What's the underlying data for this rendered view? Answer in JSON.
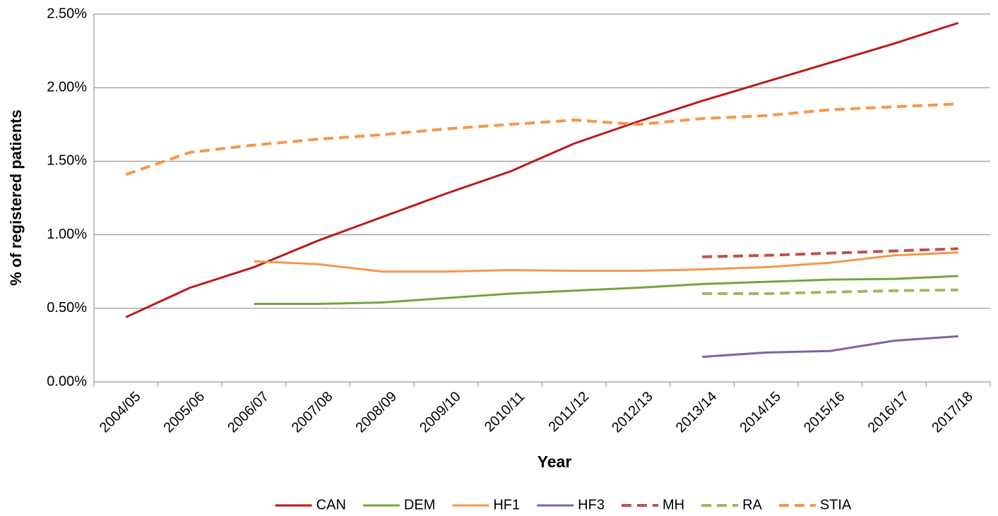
{
  "chart_data": {
    "type": "line",
    "x_label": "Year",
    "y_label": "% of registered patients",
    "categories": [
      "2004/05",
      "2005/06",
      "2006/07",
      "2007/08",
      "2008/09",
      "2009/10",
      "2010/11",
      "2011/12",
      "2012/13",
      "2013/14",
      "2014/15",
      "2015/16",
      "2016/17",
      "2017/18"
    ],
    "series": [
      {
        "name": "CAN",
        "color": "#c0161b",
        "style": "solid",
        "values": [
          0.44,
          0.64,
          0.78,
          0.96,
          1.12,
          1.28,
          1.43,
          1.62,
          1.77,
          1.91,
          2.04,
          2.17,
          2.3,
          2.44
        ]
      },
      {
        "name": "DEM",
        "color": "#77a33f",
        "style": "solid",
        "values": [
          null,
          null,
          0.53,
          0.53,
          0.54,
          0.57,
          0.6,
          0.62,
          0.64,
          0.665,
          0.68,
          0.695,
          0.7,
          0.72
        ]
      },
      {
        "name": "HF1",
        "color": "#f79646",
        "style": "solid",
        "values": [
          null,
          null,
          0.82,
          0.8,
          0.75,
          0.75,
          0.76,
          0.755,
          0.755,
          0.765,
          0.78,
          0.81,
          0.86,
          0.88
        ]
      },
      {
        "name": "HF3",
        "color": "#8064a2",
        "style": "solid",
        "values": [
          null,
          null,
          null,
          null,
          null,
          null,
          null,
          null,
          null,
          0.17,
          0.2,
          0.21,
          0.28,
          0.31
        ]
      },
      {
        "name": "MH",
        "color": "#c0504d",
        "style": "dashed",
        "values": [
          null,
          null,
          null,
          null,
          null,
          null,
          null,
          null,
          null,
          0.85,
          0.86,
          0.875,
          0.89,
          0.905
        ]
      },
      {
        "name": "RA",
        "color": "#9bbb59",
        "style": "dashed",
        "values": [
          null,
          null,
          null,
          null,
          null,
          null,
          null,
          null,
          null,
          0.6,
          0.6,
          0.61,
          0.62,
          0.625
        ]
      },
      {
        "name": "STIA",
        "color": "#f79646",
        "style": "dashed",
        "values": [
          1.41,
          1.56,
          1.61,
          1.65,
          1.68,
          1.72,
          1.75,
          1.78,
          1.75,
          1.79,
          1.81,
          1.85,
          1.87,
          1.89
        ]
      }
    ],
    "ylim": [
      0,
      2.5
    ],
    "yticks": [
      {
        "value": 0,
        "label": "0.00%"
      },
      {
        "value": 0.5,
        "label": "0.50%"
      },
      {
        "value": 1,
        "label": "1.00%"
      },
      {
        "value": 1.5,
        "label": "1.50%"
      },
      {
        "value": 2,
        "label": "2.00%"
      },
      {
        "value": 2.5,
        "label": "2.50%"
      }
    ],
    "grid": true,
    "legend": "bottom"
  }
}
